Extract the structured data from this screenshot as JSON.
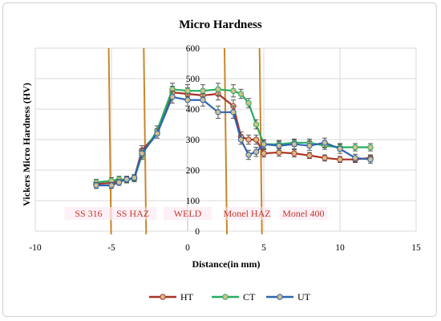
{
  "chart_data": {
    "type": "line",
    "title": "Micro Hardness",
    "xlabel": "Distance(in mm)",
    "ylabel": "Vickers Micro Hardness (HV)",
    "xlim": [
      -10,
      15
    ],
    "ylim": [
      0,
      600
    ],
    "x_ticks": [
      "-10",
      "-5",
      "0",
      "5",
      "10",
      "15"
    ],
    "y_ticks": [
      "0",
      "100",
      "200",
      "300",
      "400",
      "500",
      "600"
    ],
    "grid": true,
    "legend_position": "bottom",
    "regions": [
      {
        "label": "SS 316",
        "x": -6.5
      },
      {
        "label": "SS HAZ",
        "x": -3.6
      },
      {
        "label": "WELD",
        "x": 0.0
      },
      {
        "label": "Monel HAZ",
        "x": 3.9
      },
      {
        "label": "Monel 400",
        "x": 7.6
      }
    ],
    "boundaries": [
      -5.1,
      -2.8,
      2.5,
      4.8
    ],
    "boundary_color": "#c8872a",
    "series": [
      {
        "name": "HT",
        "color": "#a93226",
        "x": [
          -6,
          -5,
          -4.5,
          -4,
          -3.5,
          -3,
          -2,
          -1,
          0,
          1,
          2,
          3,
          3.5,
          4,
          4.5,
          5,
          6,
          7,
          8,
          9,
          10,
          11,
          12
        ],
        "y": [
          155,
          158,
          165,
          170,
          175,
          265,
          320,
          455,
          450,
          445,
          450,
          410,
          310,
          300,
          300,
          255,
          258,
          255,
          248,
          240,
          235,
          235,
          240
        ],
        "err": [
          10,
          10,
          10,
          10,
          10,
          15,
          15,
          20,
          20,
          20,
          20,
          20,
          15,
          15,
          15,
          12,
          12,
          12,
          10,
          10,
          10,
          10,
          10
        ]
      },
      {
        "name": "CT",
        "color": "#27ae60",
        "x": [
          -6,
          -5,
          -4.5,
          -4,
          -3.5,
          -3,
          -2,
          -1,
          0,
          1,
          2,
          3,
          3.5,
          4,
          4.5,
          5,
          6,
          7,
          8,
          9,
          10,
          11,
          12
        ],
        "y": [
          160,
          165,
          170,
          168,
          172,
          250,
          330,
          465,
          460,
          460,
          465,
          460,
          450,
          420,
          350,
          285,
          285,
          290,
          290,
          280,
          275,
          275,
          275
        ],
        "err": [
          10,
          10,
          10,
          10,
          10,
          15,
          15,
          20,
          20,
          20,
          20,
          20,
          15,
          15,
          15,
          12,
          12,
          12,
          12,
          12,
          12,
          12,
          12
        ]
      },
      {
        "name": "UT",
        "color": "#2e64b0",
        "x": [
          -6,
          -5,
          -4.5,
          -4,
          -3.5,
          -3,
          -2,
          -1,
          0,
          1,
          2,
          3,
          3.5,
          4,
          4.5,
          5,
          6,
          7,
          8,
          9,
          10,
          11,
          12
        ],
        "y": [
          150,
          150,
          160,
          170,
          175,
          255,
          320,
          440,
          430,
          430,
          390,
          390,
          300,
          250,
          260,
          285,
          280,
          285,
          280,
          290,
          270,
          240,
          235
        ],
        "err": [
          10,
          10,
          10,
          10,
          10,
          15,
          15,
          20,
          20,
          20,
          20,
          20,
          15,
          15,
          15,
          15,
          15,
          15,
          15,
          15,
          15,
          12,
          12
        ]
      }
    ]
  }
}
